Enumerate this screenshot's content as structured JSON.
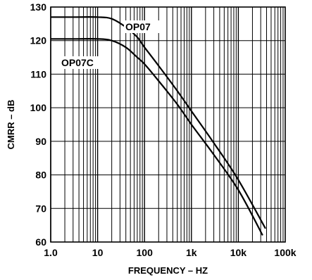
{
  "chart_data": {
    "type": "line",
    "title": "",
    "xlabel": "FREQUENCY – HZ",
    "ylabel": "CMRR – dB",
    "xscale": "log",
    "xlim": [
      1,
      100000
    ],
    "ylim": [
      60,
      130
    ],
    "grid": true,
    "x_ticks": [
      1,
      10,
      100,
      1000,
      10000,
      100000
    ],
    "x_tick_labels": [
      "1.0",
      "10",
      "100",
      "1k",
      "10k",
      "100k"
    ],
    "y_ticks": [
      60,
      70,
      80,
      90,
      100,
      110,
      120,
      130
    ],
    "y_tick_labels": [
      "60",
      "70",
      "80",
      "90",
      "100",
      "110",
      "120",
      "130"
    ],
    "series": [
      {
        "name": "OP07",
        "x": [
          1,
          3,
          10,
          20,
          40,
          70,
          100,
          200,
          500,
          1000,
          3000,
          10000,
          38000
        ],
        "y": [
          127,
          127,
          127,
          126.5,
          124,
          121,
          118,
          112.5,
          105,
          99,
          89.5,
          78.5,
          64
        ]
      },
      {
        "name": "OP07C",
        "x": [
          1,
          3,
          10,
          20,
          40,
          70,
          100,
          200,
          500,
          1000,
          3000,
          10000,
          33000
        ],
        "y": [
          120.5,
          120.5,
          120.5,
          120,
          118,
          115,
          113,
          108,
          101,
          95,
          86,
          75.5,
          62
        ]
      }
    ]
  }
}
